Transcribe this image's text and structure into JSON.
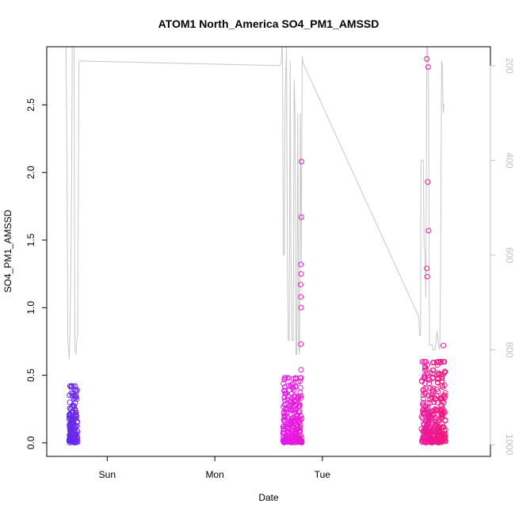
{
  "chart_data": {
    "type": "scatter",
    "title": "ATOM1 North_America SO4_PM1_AMSSD",
    "xlabel": "Date",
    "ylabel": "SO4_PM1_AMSSD",
    "x_ticks": [
      "Sun",
      "Mon",
      "Tue"
    ],
    "xlim_hours": [
      -37.5,
      61.5
    ],
    "ylim": [
      -0.1,
      2.93
    ],
    "y_ticks": [
      0.0,
      0.5,
      1.0,
      1.5,
      2.0,
      2.5
    ],
    "y_tick_labels": [
      "0.0",
      "0.5",
      "1.0",
      "1.5",
      "2.0",
      "2.5"
    ],
    "right_axis": {
      "label": "",
      "ylim_top_to_bottom": [
        160,
        1025
      ],
      "ticks": [
        200,
        400,
        600,
        800,
        1000
      ],
      "tick_labels": [
        "200",
        "400",
        "600",
        "800",
        "1000"
      ],
      "color": "#c0c0c0"
    },
    "series": [
      {
        "legend": "",
        "role": "SO4_PM1_AMSSD points",
        "color_gradient": [
          "#5a2be8",
          "#e818e8",
          "#f0187a"
        ],
        "clusters": [
          {
            "x_start": -32.5,
            "x_end": -30.6,
            "y_max": 0.42,
            "n": 160,
            "seed": 11,
            "hue_start": 0.0,
            "hue_end": 0.12
          },
          {
            "x_start": 15.2,
            "x_end": 19.4,
            "y_max": 0.48,
            "n": 260,
            "seed": 23,
            "hue_start": 0.45,
            "hue_end": 0.62
          },
          {
            "x_start": 46.1,
            "x_end": 51.5,
            "y_max": 0.6,
            "n": 340,
            "seed": 37,
            "hue_start": 0.82,
            "hue_end": 1.0
          }
        ],
        "outliers": [
          {
            "x": 19.35,
            "y": 2.08
          },
          {
            "x": 19.3,
            "y": 1.67
          },
          {
            "x": 19.2,
            "y": 1.32
          },
          {
            "x": 19.25,
            "y": 1.25
          },
          {
            "x": 19.15,
            "y": 1.17
          },
          {
            "x": 19.2,
            "y": 1.08
          },
          {
            "x": 19.25,
            "y": 1.0
          },
          {
            "x": 19.2,
            "y": 0.73
          },
          {
            "x": 19.25,
            "y": 0.54
          },
          {
            "x": 47.3,
            "y": 2.84
          },
          {
            "x": 47.6,
            "y": 2.78
          },
          {
            "x": 47.5,
            "y": 1.93
          },
          {
            "x": 47.7,
            "y": 1.57
          },
          {
            "x": 47.3,
            "y": 1.29
          },
          {
            "x": 47.4,
            "y": 1.23
          },
          {
            "x": 51.0,
            "y": 0.72
          }
        ]
      },
      {
        "legend": "",
        "role": "pressure trace (right axis)",
        "color": "#c8c8c8",
        "points": [
          [
            -33.5,
            160
          ],
          [
            -33.2,
            160
          ],
          [
            -33.0,
            400
          ],
          [
            -32.8,
            780
          ],
          [
            -32.6,
            800
          ],
          [
            -32.5,
            820
          ],
          [
            -32.3,
            760
          ],
          [
            -32.0,
            520
          ],
          [
            -31.8,
            160
          ],
          [
            -31.6,
            160
          ],
          [
            -31.4,
            160
          ],
          [
            -31.2,
            800
          ],
          [
            -31.0,
            810
          ],
          [
            -30.8,
            780
          ],
          [
            -30.6,
            770
          ],
          [
            -30.5,
            580
          ],
          [
            -30.3,
            190
          ],
          [
            14.5,
            200
          ],
          [
            14.8,
            195
          ],
          [
            15.0,
            160
          ],
          [
            15.1,
            160
          ],
          [
            15.3,
            600
          ],
          [
            15.5,
            600
          ],
          [
            15.7,
            270
          ],
          [
            16.0,
            160
          ],
          [
            16.2,
            620
          ],
          [
            16.4,
            780
          ],
          [
            16.6,
            780
          ],
          [
            16.8,
            190
          ],
          [
            17.0,
            600
          ],
          [
            17.2,
            780
          ],
          [
            17.5,
            780
          ],
          [
            17.7,
            230
          ],
          [
            17.9,
            300
          ],
          [
            18.1,
            810
          ],
          [
            18.3,
            810
          ],
          [
            18.5,
            300
          ],
          [
            18.7,
            790
          ],
          [
            18.9,
            810
          ],
          [
            19.1,
            300
          ],
          [
            19.3,
            620
          ],
          [
            19.5,
            180
          ],
          [
            19.7,
            195
          ],
          [
            45.5,
            730
          ],
          [
            45.7,
            770
          ],
          [
            45.9,
            770
          ],
          [
            46.0,
            400
          ],
          [
            46.3,
            400
          ],
          [
            46.5,
            400
          ],
          [
            46.7,
            580
          ],
          [
            46.9,
            600
          ],
          [
            47.1,
            690
          ],
          [
            47.3,
            160
          ],
          [
            47.5,
            160
          ],
          [
            47.7,
            250
          ],
          [
            47.9,
            790
          ],
          [
            48.1,
            790
          ],
          [
            48.3,
            790
          ],
          [
            48.5,
            790
          ],
          [
            48.7,
            800
          ],
          [
            48.9,
            800
          ],
          [
            49.1,
            800
          ],
          [
            49.3,
            790
          ],
          [
            49.6,
            760
          ],
          [
            49.9,
            790
          ],
          [
            50.2,
            800
          ],
          [
            50.4,
            600
          ],
          [
            50.5,
            380
          ],
          [
            50.6,
            190
          ],
          [
            50.8,
            200
          ],
          [
            50.9,
            280
          ],
          [
            51.0,
            300
          ],
          [
            51.1,
            280
          ]
        ]
      }
    ],
    "grid": false,
    "legend_position": "none"
  }
}
